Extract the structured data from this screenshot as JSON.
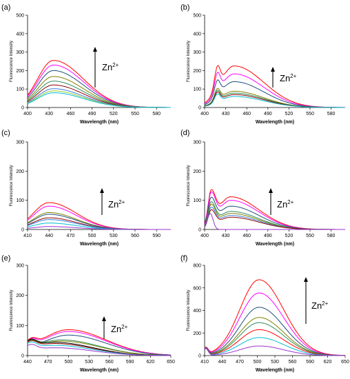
{
  "chart_data": [
    {
      "panel": "(a)",
      "type": "line",
      "xlabel": "Wavelength (nm)",
      "ylabel": "Fluorescence Intensity",
      "xlim": [
        400,
        600
      ],
      "ylim": [
        0,
        500
      ],
      "xticks": [
        400,
        430,
        460,
        490,
        520,
        550,
        580
      ],
      "yticks": [
        0,
        100,
        200,
        300,
        400,
        500
      ],
      "annotation": {
        "base": "Zn",
        "sup": "2+"
      },
      "series": [
        {
          "color": "#ff0000",
          "peaks": [
            {
              "x": 436,
              "y": 255,
              "w": 22,
              "r": 42
            }
          ]
        },
        {
          "color": "#ff00ff",
          "peaks": [
            {
              "x": 436,
              "y": 230,
              "w": 22,
              "r": 42
            }
          ]
        },
        {
          "color": "#1f4e79",
          "peaks": [
            {
              "x": 436,
              "y": 200,
              "w": 22,
              "r": 42
            }
          ]
        },
        {
          "color": "#808000",
          "peaks": [
            {
              "x": 436,
              "y": 168,
              "w": 22,
              "r": 42
            }
          ]
        },
        {
          "color": "#2e8b57",
          "peaks": [
            {
              "x": 436,
              "y": 143,
              "w": 22,
              "r": 42
            }
          ]
        },
        {
          "color": "#8b0000",
          "peaks": [
            {
              "x": 436,
              "y": 122,
              "w": 22,
              "r": 42
            }
          ]
        },
        {
          "color": "#3b7dd8",
          "peaks": [
            {
              "x": 436,
              "y": 102,
              "w": 22,
              "r": 42
            }
          ]
        },
        {
          "color": "#9acd32",
          "peaks": [
            {
              "x": 436,
              "y": 90,
              "w": 22,
              "r": 42
            }
          ]
        },
        {
          "color": "#00bcd4",
          "peaks": [
            {
              "x": 436,
              "y": 80,
              "w": 22,
              "r": 42
            }
          ]
        }
      ]
    },
    {
      "panel": "(b)",
      "type": "line",
      "xlabel": "Wavelength (nm)",
      "ylabel": "Fluorescence Intensity",
      "xlim": [
        400,
        600
      ],
      "ylim": [
        0,
        500
      ],
      "xticks": [
        400,
        430,
        460,
        490,
        520,
        550,
        580
      ],
      "yticks": [
        0,
        100,
        200,
        300,
        400,
        500
      ],
      "annotation": {
        "base": "Zn",
        "sup": "2+"
      },
      "series": [
        {
          "color": "#ff0000",
          "peaks": [
            {
              "x": 418,
              "y": 115,
              "w": 4,
              "r": 4
            },
            {
              "x": 442,
              "y": 225,
              "w": 20,
              "r": 42
            }
          ]
        },
        {
          "color": "#ff00ff",
          "peaks": [
            {
              "x": 418,
              "y": 100,
              "w": 4,
              "r": 4
            },
            {
              "x": 442,
              "y": 182,
              "w": 20,
              "r": 42
            }
          ]
        },
        {
          "color": "#1f4e79",
          "peaks": [
            {
              "x": 418,
              "y": 80,
              "w": 4,
              "r": 4
            },
            {
              "x": 442,
              "y": 140,
              "w": 20,
              "r": 42
            }
          ]
        },
        {
          "color": "#808000",
          "peaks": [
            {
              "x": 418,
              "y": 60,
              "w": 4,
              "r": 4
            },
            {
              "x": 442,
              "y": 88,
              "w": 20,
              "r": 42
            }
          ]
        },
        {
          "color": "#2e8b57",
          "peaks": [
            {
              "x": 418,
              "y": 55,
              "w": 4,
              "r": 4
            },
            {
              "x": 442,
              "y": 78,
              "w": 20,
              "r": 42
            }
          ]
        },
        {
          "color": "#8b0000",
          "peaks": [
            {
              "x": 418,
              "y": 50,
              "w": 4,
              "r": 4
            },
            {
              "x": 442,
              "y": 70,
              "w": 20,
              "r": 42
            }
          ]
        },
        {
          "color": "#00bcd4",
          "peaks": [
            {
              "x": 418,
              "y": 45,
              "w": 4,
              "r": 4
            },
            {
              "x": 442,
              "y": 60,
              "w": 20,
              "r": 42
            }
          ]
        }
      ]
    },
    {
      "panel": "(c)",
      "type": "line",
      "xlabel": "Wavelength (nm)",
      "ylabel": "Fluorescence Intensity",
      "xlim": [
        410,
        610
      ],
      "ylim": [
        0,
        300
      ],
      "xticks": [
        410,
        440,
        470,
        500,
        530,
        560,
        590
      ],
      "yticks": [
        0,
        100,
        200,
        300
      ],
      "annotation": {
        "base": "Zn",
        "sup": "2+"
      },
      "series": [
        {
          "color": "#ff0000",
          "peaks": [
            {
              "x": 440,
              "y": 92,
              "w": 22,
              "r": 38
            }
          ]
        },
        {
          "color": "#ff00ff",
          "peaks": [
            {
              "x": 440,
              "y": 80,
              "w": 22,
              "r": 38
            }
          ]
        },
        {
          "color": "#808000",
          "peaks": [
            {
              "x": 440,
              "y": 58,
              "w": 22,
              "r": 38
            }
          ]
        },
        {
          "color": "#1f4e79",
          "peaks": [
            {
              "x": 440,
              "y": 52,
              "w": 22,
              "r": 38
            }
          ]
        },
        {
          "color": "#8b0000",
          "peaks": [
            {
              "x": 440,
              "y": 40,
              "w": 22,
              "r": 38
            }
          ]
        },
        {
          "color": "#3b7dd8",
          "peaks": [
            {
              "x": 440,
              "y": 34,
              "w": 22,
              "r": 38
            }
          ]
        },
        {
          "color": "#00bcd4",
          "peaks": [
            {
              "x": 440,
              "y": 22,
              "w": 22,
              "r": 38
            }
          ]
        },
        {
          "color": "#9932cc",
          "peaks": [
            {
              "x": 440,
              "y": 10,
              "w": 22,
              "r": 38
            }
          ]
        }
      ]
    },
    {
      "panel": "(d)",
      "type": "line",
      "xlabel": "Wavelength (nm)",
      "ylabel": "Fluorescence Intensity",
      "xlim": [
        400,
        600
      ],
      "ylim": [
        0,
        300
      ],
      "xticks": [
        400,
        430,
        460,
        490,
        520,
        550,
        580
      ],
      "yticks": [
        0,
        100,
        200,
        300
      ],
      "annotation": {
        "base": "Zn",
        "sup": "2+"
      },
      "series": [
        {
          "color": "#ff0000",
          "peaks": [
            {
              "x": 409,
              "y": 102,
              "w": 4,
              "r": 6
            },
            {
              "x": 437,
              "y": 112,
              "w": 18,
              "r": 40
            }
          ]
        },
        {
          "color": "#ff00ff",
          "peaks": [
            {
              "x": 409,
              "y": 98,
              "w": 4,
              "r": 6
            },
            {
              "x": 437,
              "y": 100,
              "w": 18,
              "r": 40
            }
          ]
        },
        {
          "color": "#1f4e79",
          "peaks": [
            {
              "x": 409,
              "y": 86,
              "w": 4,
              "r": 6
            },
            {
              "x": 437,
              "y": 80,
              "w": 18,
              "r": 40
            }
          ]
        },
        {
          "color": "#2e8b57",
          "peaks": [
            {
              "x": 409,
              "y": 76,
              "w": 4,
              "r": 6
            },
            {
              "x": 437,
              "y": 62,
              "w": 18,
              "r": 40
            }
          ]
        },
        {
          "color": "#808000",
          "peaks": [
            {
              "x": 409,
              "y": 70,
              "w": 4,
              "r": 6
            },
            {
              "x": 437,
              "y": 55,
              "w": 18,
              "r": 40
            }
          ]
        },
        {
          "color": "#3b7dd8",
          "peaks": [
            {
              "x": 409,
              "y": 62,
              "w": 4,
              "r": 6
            },
            {
              "x": 437,
              "y": 48,
              "w": 18,
              "r": 40
            }
          ]
        },
        {
          "color": "#8b0000",
          "peaks": [
            {
              "x": 409,
              "y": 55,
              "w": 4,
              "r": 6
            },
            {
              "x": 437,
              "y": 42,
              "w": 18,
              "r": 40
            }
          ]
        },
        {
          "color": "#9932cc",
          "peaks": [
            {
              "x": 408,
              "y": 55,
              "w": 4,
              "r": 4
            }
          ]
        }
      ]
    },
    {
      "panel": "(e)",
      "type": "line",
      "xlabel": "Wavelength (nm)",
      "ylabel": "Fluorescence Intensity",
      "xlim": [
        440,
        650
      ],
      "ylim": [
        0,
        300
      ],
      "xticks": [
        440,
        470,
        500,
        530,
        560,
        590,
        620,
        650
      ],
      "yticks": [
        0,
        100,
        200,
        300
      ],
      "annotation": {
        "base": "Zn",
        "sup": "2+"
      },
      "series": [
        {
          "color": "#ff0000",
          "peaks": [
            {
              "x": 445,
              "y": 25,
              "w": 10,
              "r": 8
            },
            {
              "x": 500,
              "y": 86,
              "w": 40,
              "r": 55
            }
          ]
        },
        {
          "color": "#ff00ff",
          "peaks": [
            {
              "x": 445,
              "y": 25,
              "w": 10,
              "r": 8
            },
            {
              "x": 500,
              "y": 80,
              "w": 40,
              "r": 55
            }
          ]
        },
        {
          "color": "#1f4e79",
          "peaks": [
            {
              "x": 445,
              "y": 25,
              "w": 10,
              "r": 8
            },
            {
              "x": 500,
              "y": 68,
              "w": 40,
              "r": 55
            }
          ]
        },
        {
          "color": "#2e8b57",
          "peaks": [
            {
              "x": 445,
              "y": 22,
              "w": 10,
              "r": 8
            },
            {
              "x": 490,
              "y": 52,
              "w": 45,
              "r": 55
            }
          ]
        },
        {
          "color": "#808000",
          "peaks": [
            {
              "x": 445,
              "y": 22,
              "w": 10,
              "r": 8
            },
            {
              "x": 490,
              "y": 48,
              "w": 45,
              "r": 55
            }
          ]
        },
        {
          "color": "#000000",
          "peaks": [
            {
              "x": 445,
              "y": 22,
              "w": 10,
              "r": 8
            },
            {
              "x": 480,
              "y": 44,
              "w": 45,
              "r": 55
            }
          ]
        },
        {
          "color": "#8b0000",
          "peaks": [
            {
              "x": 445,
              "y": 20,
              "w": 10,
              "r": 8
            },
            {
              "x": 480,
              "y": 40,
              "w": 45,
              "r": 55
            }
          ]
        },
        {
          "color": "#00bcd4",
          "peaks": [
            {
              "x": 445,
              "y": 20,
              "w": 10,
              "r": 8
            },
            {
              "x": 480,
              "y": 34,
              "w": 45,
              "r": 55
            }
          ]
        },
        {
          "color": "#9932cc",
          "peaks": [
            {
              "x": 445,
              "y": 18,
              "w": 10,
              "r": 8
            },
            {
              "x": 480,
              "y": 26,
              "w": 45,
              "r": 55
            }
          ]
        }
      ]
    },
    {
      "panel": "(f)",
      "type": "line",
      "xlabel": "Wavelength (nm)",
      "ylabel": "Fluorescence Intensity",
      "xlim": [
        410,
        650
      ],
      "ylim": [
        0,
        800
      ],
      "xticks": [
        410,
        440,
        470,
        500,
        530,
        560,
        590,
        620,
        650
      ],
      "yticks": [
        0,
        200,
        400,
        600,
        800
      ],
      "annotation": {
        "base": "Zn",
        "sup": "2+"
      },
      "series": [
        {
          "color": "#ff0000",
          "peaks": [
            {
              "x": 412,
              "y": 60,
              "w": 4,
              "r": 4
            },
            {
              "x": 503,
              "y": 672,
              "w": 33,
              "r": 42
            }
          ]
        },
        {
          "color": "#ff00ff",
          "peaks": [
            {
              "x": 412,
              "y": 60,
              "w": 4,
              "r": 4
            },
            {
              "x": 503,
              "y": 555,
              "w": 33,
              "r": 42
            }
          ]
        },
        {
          "color": "#1f4e79",
          "peaks": [
            {
              "x": 412,
              "y": 60,
              "w": 4,
              "r": 4
            },
            {
              "x": 503,
              "y": 428,
              "w": 33,
              "r": 42
            }
          ]
        },
        {
          "color": "#808000",
          "peaks": [
            {
              "x": 412,
              "y": 60,
              "w": 4,
              "r": 4
            },
            {
              "x": 503,
              "y": 338,
              "w": 33,
              "r": 42
            }
          ]
        },
        {
          "color": "#2e8b57",
          "peaks": [
            {
              "x": 412,
              "y": 60,
              "w": 4,
              "r": 4
            },
            {
              "x": 503,
              "y": 292,
              "w": 33,
              "r": 42
            }
          ]
        },
        {
          "color": "#ff0000",
          "peaks": [
            {
              "x": 412,
              "y": 60,
              "w": 4,
              "r": 4
            },
            {
              "x": 503,
              "y": 230,
              "w": 33,
              "r": 42
            }
          ]
        },
        {
          "color": "#00bcd4",
          "peaks": [
            {
              "x": 412,
              "y": 60,
              "w": 4,
              "r": 4
            },
            {
              "x": 503,
              "y": 160,
              "w": 33,
              "r": 42
            }
          ]
        },
        {
          "color": "#9932cc",
          "peaks": [
            {
              "x": 412,
              "y": 60,
              "w": 4,
              "r": 4
            },
            {
              "x": 503,
              "y": 85,
              "w": 33,
              "r": 42
            }
          ]
        }
      ]
    }
  ]
}
